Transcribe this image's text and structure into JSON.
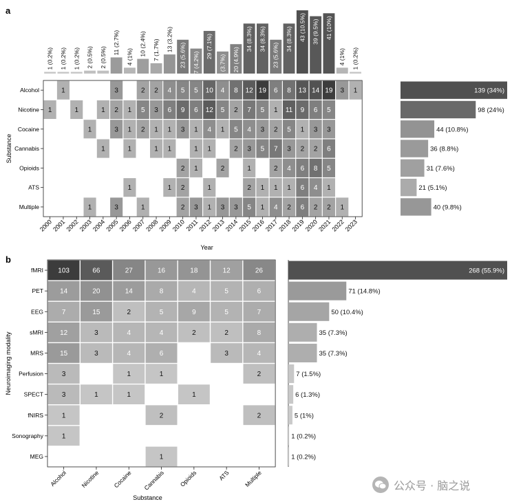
{
  "chart_data": [
    {
      "type": "heatmap",
      "panel_label": "a",
      "title": "",
      "xlabel": "Year",
      "ylabel": "Substance",
      "years": [
        "2000",
        "2001",
        "2002",
        "2003",
        "2004",
        "2005",
        "2006",
        "2007",
        "2008",
        "2009",
        "2010",
        "2011",
        "2012",
        "2013",
        "2014",
        "2015",
        "2016",
        "2017",
        "2018",
        "2019",
        "2020",
        "2021",
        "2022",
        "2023"
      ],
      "year_totals": [
        1,
        1,
        1,
        2,
        2,
        11,
        4,
        10,
        7,
        13,
        23,
        17,
        29,
        15,
        20,
        34,
        34,
        23,
        34,
        43,
        39,
        41,
        4,
        1
      ],
      "year_total_labels": [
        "1 (0.2%)",
        "1 (0.2%)",
        "1 (0.2%)",
        "2 (0.5%)",
        "2 (0.5%)",
        "11 (2.7%)",
        "4 (1%)",
        "10 (2.4%)",
        "7 (1.7%)",
        "13 (3.2%)",
        "23 (5.6%)",
        "17 (4.2%)",
        "29 (7.1%)",
        "15 (3.7%)",
        "20 (4.9%)",
        "34 (8.3%)",
        "34 (8.3%)",
        "23 (5.6%)",
        "34 (8.3%)",
        "43 (10.5%)",
        "39 (9.5%)",
        "41 (10%)",
        "4 (1%)",
        "1 (0.2%)"
      ],
      "substances": [
        "Alcohol",
        "Nicotine",
        "Cocaine",
        "Cannabis",
        "Opioids",
        "ATS",
        "Multiple"
      ],
      "cells": [
        [
          null,
          1,
          null,
          null,
          null,
          3,
          null,
          2,
          2,
          4,
          5,
          5,
          10,
          4,
          8,
          12,
          19,
          6,
          8,
          13,
          14,
          19,
          3,
          1
        ],
        [
          1,
          null,
          1,
          null,
          1,
          2,
          1,
          5,
          3,
          6,
          9,
          6,
          12,
          5,
          2,
          7,
          5,
          1,
          11,
          9,
          6,
          5,
          null,
          null
        ],
        [
          null,
          null,
          null,
          1,
          null,
          3,
          1,
          2,
          1,
          1,
          3,
          1,
          4,
          1,
          5,
          4,
          3,
          2,
          5,
          1,
          3,
          3,
          null,
          null
        ],
        [
          null,
          null,
          null,
          null,
          1,
          null,
          1,
          null,
          1,
          1,
          null,
          1,
          1,
          null,
          2,
          3,
          5,
          7,
          3,
          2,
          2,
          6,
          null,
          null
        ],
        [
          null,
          null,
          null,
          null,
          null,
          null,
          null,
          null,
          null,
          null,
          2,
          1,
          null,
          2,
          null,
          1,
          null,
          2,
          4,
          6,
          8,
          5,
          null,
          null
        ],
        [
          null,
          null,
          null,
          null,
          null,
          null,
          1,
          null,
          null,
          1,
          2,
          null,
          1,
          null,
          null,
          2,
          1,
          1,
          1,
          6,
          4,
          1,
          null,
          null
        ],
        [
          null,
          null,
          null,
          1,
          null,
          3,
          null,
          1,
          null,
          null,
          2,
          3,
          1,
          3,
          3,
          5,
          1,
          4,
          2,
          6,
          2,
          2,
          1,
          null
        ]
      ],
      "row_totals": [
        139,
        98,
        44,
        36,
        31,
        21,
        40
      ],
      "row_total_labels": [
        "139 (34%)",
        "98 (24%)",
        "44 (10.8%)",
        "36 (8.8%)",
        "31 (7.6%)",
        "21 (5.1%)",
        "40 (9.8%)"
      ]
    },
    {
      "type": "heatmap",
      "panel_label": "b",
      "title": "",
      "xlabel": "Substance",
      "ylabel": "Neuroimaging modality",
      "substances": [
        "Alcohol",
        "Nicotine",
        "Cocaine",
        "Cannabis",
        "Opioids",
        "ATS",
        "Multiple"
      ],
      "modalities": [
        "fMRI",
        "PET",
        "EEG",
        "sMRI",
        "MRS",
        "Perfusion",
        "SPECT",
        "fNIRS",
        "Sonography",
        "MEG"
      ],
      "cells": [
        [
          103,
          66,
          27,
          16,
          18,
          12,
          26
        ],
        [
          14,
          20,
          14,
          8,
          4,
          5,
          6
        ],
        [
          7,
          15,
          2,
          5,
          9,
          5,
          7
        ],
        [
          12,
          3,
          4,
          4,
          2,
          2,
          8
        ],
        [
          15,
          3,
          4,
          6,
          null,
          3,
          4
        ],
        [
          3,
          null,
          1,
          1,
          null,
          null,
          2
        ],
        [
          3,
          1,
          1,
          null,
          1,
          null,
          null
        ],
        [
          1,
          null,
          null,
          2,
          null,
          null,
          2
        ],
        [
          1,
          null,
          null,
          null,
          null,
          null,
          null
        ],
        [
          null,
          null,
          null,
          1,
          null,
          null,
          null
        ]
      ],
      "row_totals": [
        268,
        71,
        50,
        35,
        35,
        7,
        6,
        5,
        1,
        1
      ],
      "row_total_labels": [
        "268 (55.9%)",
        "71 (14.8%)",
        "50 (10.4%)",
        "35 (7.3%)",
        "35 (7.3%)",
        "7 (1.5%)",
        "6 (1.3%)",
        "5 (1%)",
        "1 (0.2%)",
        "1 (0.2%)"
      ]
    }
  ],
  "watermark": {
    "text": "公众号 · 脑之说",
    "icon": "wechat-logo-icon"
  },
  "colors": {
    "bar_dark": "#505050",
    "bar_light": "#d6d6d6",
    "cell_light": "#d4d4d4",
    "cell_dark": "#3c3c3c"
  }
}
